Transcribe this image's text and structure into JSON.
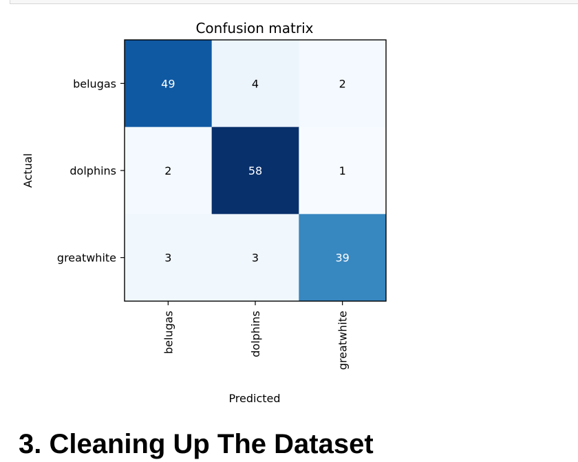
{
  "chart_data": {
    "type": "heatmap",
    "title": "Confusion matrix",
    "xlabel": "Predicted",
    "ylabel": "Actual",
    "x_categories": [
      "belugas",
      "dolphins",
      "greatwhite"
    ],
    "y_categories": [
      "belugas",
      "dolphins",
      "greatwhite"
    ],
    "values": [
      [
        49,
        4,
        2
      ],
      [
        2,
        58,
        1
      ],
      [
        3,
        3,
        39
      ]
    ],
    "colormap": "Blues",
    "colors": {
      "low": "#f7fbff",
      "high": "#08306b"
    }
  },
  "section_heading": "3. Cleaning Up The Dataset"
}
